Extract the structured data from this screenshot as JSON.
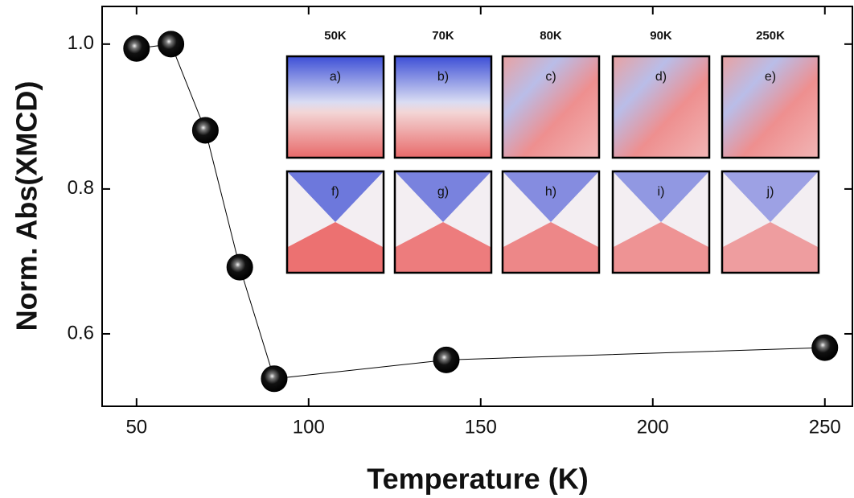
{
  "chart_data": {
    "type": "line",
    "x_label": "Temperature (K)",
    "y_label": "Norm. Abs(XMCD)",
    "x": [
      50,
      60,
      70,
      80,
      90,
      140,
      250
    ],
    "series": [
      {
        "color": "#000000",
        "values": [
          0.994,
          1.0,
          0.881,
          0.692,
          0.538,
          0.564,
          0.581
        ]
      }
    ],
    "xlim": [
      40,
      258
    ],
    "ylim": [
      0.5,
      1.052
    ],
    "xticks": [
      50,
      100,
      150,
      200,
      250
    ],
    "yticks": [
      {
        "value": 0.6,
        "label": "0.6"
      },
      {
        "value": 0.8,
        "label": "0.8"
      },
      {
        "value": 1.0,
        "label": "1.0"
      }
    ],
    "inset": {
      "columns": [
        "50K",
        "70K",
        "80K",
        "90K",
        "250K"
      ],
      "panels": [
        "a)",
        "b)",
        "c)",
        "d)",
        "e)",
        "f)",
        "g)",
        "h)",
        "i)",
        "j)"
      ]
    }
  }
}
